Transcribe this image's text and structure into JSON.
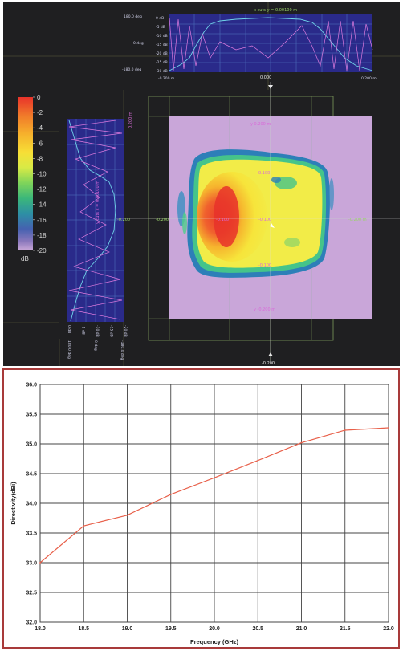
{
  "scan": {
    "colorbar": {
      "ticks": [
        "0",
        "-2",
        "-4",
        "-6",
        "-8",
        "-10",
        "-12",
        "-14",
        "-16",
        "-18",
        "-20"
      ],
      "unit": "dB",
      "colors": [
        "#e8332a",
        "#f07a2a",
        "#f6b12c",
        "#f7df36",
        "#e8ee43",
        "#b7e04c",
        "#6fd05c",
        "#3bb77a",
        "#2d8fa5",
        "#3a5fb0",
        "#7f70b8",
        "#c9a9d8"
      ]
    },
    "plot_labels": {
      "y_top": "y 0.200 m",
      "y_bottom": "y -0.200 m",
      "inner_top": "0.100",
      "inner_bottom": "-0.100",
      "center_left": "-0.100",
      "center_right": "-0.100",
      "green_left": "-0.200",
      "green_mid": "-0.200",
      "green_right": "-0.200 m",
      "axis_top": "0.000",
      "axis_bottom": "-0.200"
    },
    "top_trace": {
      "title": "x cuts  y = 0.00100 m",
      "left_labels": [
        "180.0 deg",
        "0 deg",
        "-180.0 deg"
      ],
      "right_labels": [
        "0 dB",
        "-5 dB",
        "-10 dB",
        "-15 dB",
        "-20 dB",
        "-25 dB",
        "-30 dB"
      ],
      "x_left": "-0.200 m",
      "x_right": "0.200 m"
    },
    "left_trace": {
      "top_label": "0.200 m",
      "bottom_labels": [
        "0 dB",
        "-5 dB",
        "-10 dB",
        "-15 dB",
        "-20 dB"
      ],
      "side_label": "y cuts  x = 0.00100 m",
      "rot_labels": [
        "180.0 deg",
        "0 deg",
        "-180.0 deg"
      ]
    }
  },
  "chart_data": {
    "type": "line",
    "x": [
      18.0,
      18.5,
      19.0,
      19.5,
      20.0,
      20.5,
      21.0,
      21.5,
      22.0
    ],
    "series": [
      {
        "values": [
          33.0,
          33.62,
          33.8,
          34.15,
          34.43,
          34.72,
          35.02,
          35.23,
          35.27
        ],
        "color": "#e8604a"
      }
    ],
    "xlabel": "Frequency (GHz)",
    "ylabel": "Directivity(dBi)",
    "xlim": [
      18.0,
      22.0
    ],
    "ylim": [
      32.0,
      36.0
    ],
    "xticks": [
      "18.0",
      "18.5",
      "19.0",
      "19.5",
      "20.0",
      "20.5",
      "21.0",
      "21.5",
      "22.0"
    ],
    "yticks": [
      "32.0",
      "32.5",
      "33.0",
      "33.5",
      "34.0",
      "34.5",
      "35.0",
      "35.5",
      "36.0"
    ],
    "grid": true
  }
}
